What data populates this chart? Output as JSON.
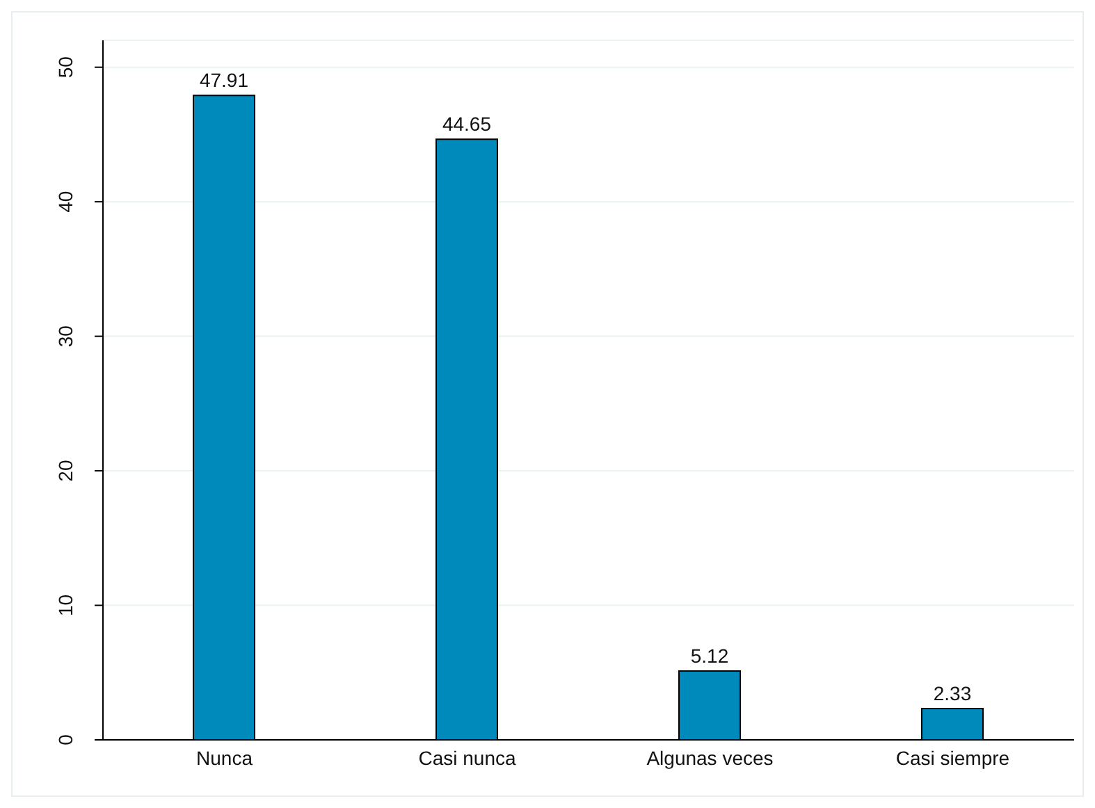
{
  "chart_data": {
    "type": "bar",
    "categories": [
      "Nunca",
      "Casi nunca",
      "Algunas veces",
      "Casi siempre"
    ],
    "values": [
      47.91,
      44.65,
      5.12,
      2.33
    ],
    "color": "#0089bb",
    "ylim": [
      0,
      52
    ],
    "yticks": [
      0,
      10,
      20,
      30,
      40,
      50
    ],
    "grid": "y",
    "data_labels": true
  }
}
